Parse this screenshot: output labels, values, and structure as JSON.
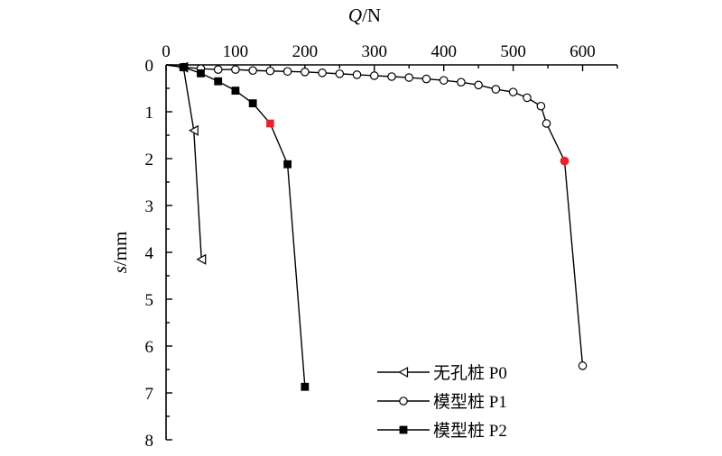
{
  "chart_data": {
    "type": "line",
    "title": "",
    "xlabel": {
      "italic": "Q",
      "rest": "/N"
    },
    "ylabel": {
      "italic": "s",
      "rest": "/mm"
    },
    "x_axis_position": "top",
    "y_axis_inverted": true,
    "xlim": [
      0,
      650
    ],
    "ylim": [
      0,
      8
    ],
    "x_ticks": [
      0,
      100,
      200,
      300,
      400,
      500,
      600
    ],
    "y_ticks": [
      0,
      1,
      2,
      3,
      4,
      5,
      6,
      7,
      8
    ],
    "grid": false,
    "legend_position": "bottom-right",
    "series": [
      {
        "name": "无孔桩 P0",
        "marker": "triangle-left-open",
        "color": "#000000",
        "points": [
          [
            0,
            0
          ],
          [
            25,
            0.05
          ],
          [
            40,
            1.4
          ],
          [
            51,
            4.15
          ]
        ]
      },
      {
        "name": "模型桩 P1",
        "marker": "circle-open",
        "color": "#000000",
        "highlight_index": 24,
        "highlight_color": "#e8212a",
        "points": [
          [
            0,
            0
          ],
          [
            25,
            0.05
          ],
          [
            50,
            0.08
          ],
          [
            75,
            0.1
          ],
          [
            100,
            0.1
          ],
          [
            125,
            0.12
          ],
          [
            150,
            0.13
          ],
          [
            175,
            0.14
          ],
          [
            200,
            0.15
          ],
          [
            225,
            0.17
          ],
          [
            250,
            0.19
          ],
          [
            275,
            0.21
          ],
          [
            300,
            0.23
          ],
          [
            325,
            0.25
          ],
          [
            350,
            0.27
          ],
          [
            375,
            0.3
          ],
          [
            400,
            0.33
          ],
          [
            425,
            0.37
          ],
          [
            450,
            0.43
          ],
          [
            475,
            0.52
          ],
          [
            500,
            0.58
          ],
          [
            520,
            0.7
          ],
          [
            540,
            0.88
          ],
          [
            548,
            1.25
          ],
          [
            574,
            2.05
          ],
          [
            600,
            6.42
          ]
        ]
      },
      {
        "name": "模型桩 P2",
        "marker": "square-filled",
        "color": "#000000",
        "highlight_index": 6,
        "highlight_color": "#e8212a",
        "points": [
          [
            0,
            0
          ],
          [
            25,
            0.05
          ],
          [
            50,
            0.18
          ],
          [
            75,
            0.35
          ],
          [
            100,
            0.55
          ],
          [
            125,
            0.82
          ],
          [
            150,
            1.25
          ],
          [
            175,
            2.12
          ],
          [
            200,
            6.87
          ]
        ]
      }
    ]
  }
}
